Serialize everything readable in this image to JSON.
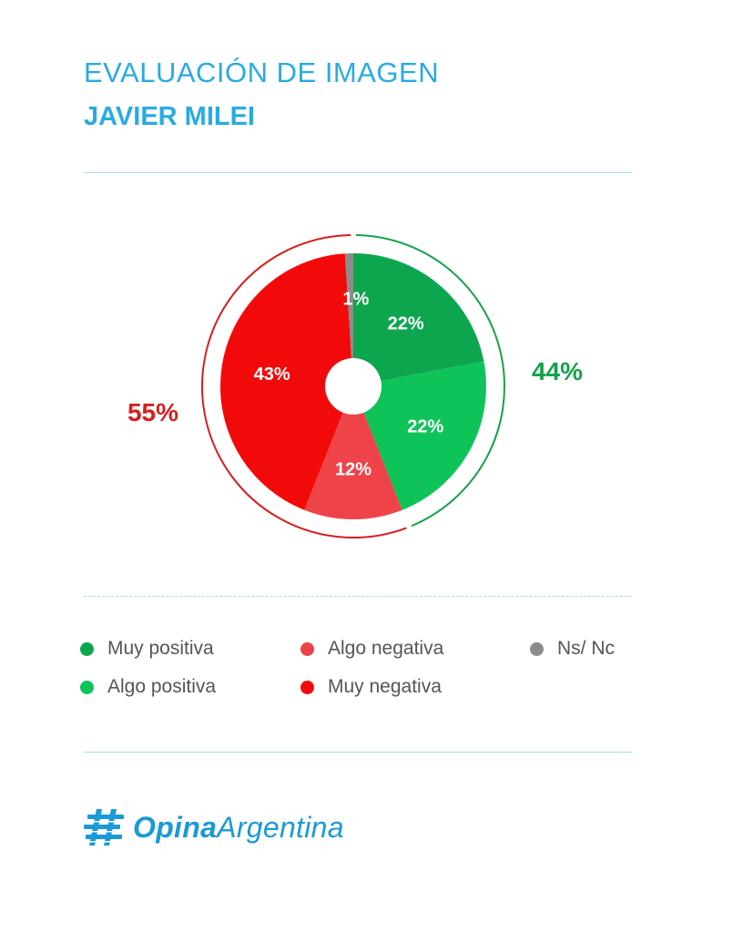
{
  "header": {
    "title": "EVALUACIÓN DE IMAGEN",
    "subtitle": "JAVIER MILEI"
  },
  "chart_data": {
    "type": "pie",
    "variant": "donut",
    "title": "EVALUACIÓN DE IMAGEN",
    "subtitle": "JAVIER MILEI",
    "slices": [
      {
        "label": "Muy positiva",
        "value": 22,
        "display": "22%",
        "color": "#0da64f"
      },
      {
        "label": "Algo positiva",
        "value": 22,
        "display": "22%",
        "color": "#0ec459"
      },
      {
        "label": "Algo negativa",
        "value": 12,
        "display": "12%",
        "color": "#ee4349"
      },
      {
        "label": "Muy negativa",
        "value": 43,
        "display": "43%",
        "color": "#f20a0a"
      },
      {
        "label": "Ns/ Nc",
        "value": 1,
        "display": "1%",
        "color": "#8c8c8c"
      }
    ],
    "totals": {
      "positive": {
        "label": "44%",
        "value": 44,
        "color": "#14a24a"
      },
      "negative": {
        "label": "55%",
        "value": 55,
        "color": "#d61f1f"
      }
    }
  },
  "legend": [
    {
      "label": "Muy positiva",
      "color": "#0da64f"
    },
    {
      "label": "Algo negativa",
      "color": "#ee4349"
    },
    {
      "label": "Ns/ Nc",
      "color": "#8c8c8c"
    },
    {
      "label": "Algo positiva",
      "color": "#0ec459"
    },
    {
      "label": "Muy negativa",
      "color": "#f20a0a"
    }
  ],
  "brand": {
    "name_bold": "Opina",
    "name_regular": "Argentina",
    "color": "#1a9ad6"
  }
}
